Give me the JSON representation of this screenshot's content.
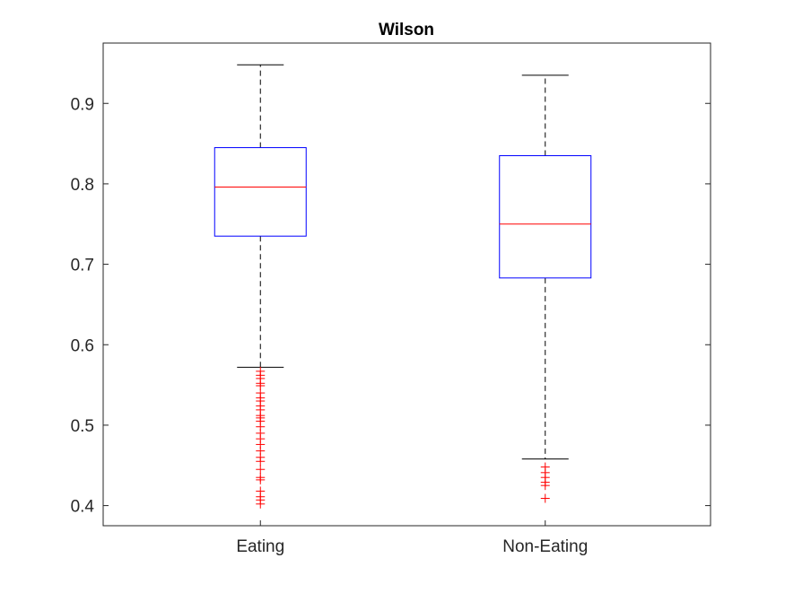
{
  "chart_data": {
    "type": "boxplot",
    "title": "Wilson",
    "xlabel": "",
    "ylabel": "",
    "ylim": [
      0.375,
      0.975
    ],
    "yticks": [
      0.4,
      0.5,
      0.6,
      0.7,
      0.8,
      0.9
    ],
    "ytick_labels": [
      "0.4",
      "0.5",
      "0.6",
      "0.7",
      "0.8",
      "0.9"
    ],
    "grid": false,
    "colors": {
      "box": "#0000ff",
      "median": "#ff0000",
      "whisker": "#000000",
      "outlier": "#ff0000",
      "axes": "#262626"
    },
    "categories": [
      "Eating",
      "Non-Eating"
    ],
    "boxes": [
      {
        "category": "Eating",
        "whisker_low": 0.572,
        "q1": 0.735,
        "median": 0.796,
        "q3": 0.845,
        "whisker_high": 0.948,
        "outliers": [
          0.402,
          0.407,
          0.411,
          0.418,
          0.432,
          0.435,
          0.445,
          0.455,
          0.46,
          0.468,
          0.476,
          0.483,
          0.49,
          0.498,
          0.505,
          0.509,
          0.512,
          0.519,
          0.524,
          0.53,
          0.534,
          0.54,
          0.549,
          0.552,
          0.558,
          0.562,
          0.567
        ]
      },
      {
        "category": "Non-Eating",
        "whisker_low": 0.458,
        "q1": 0.683,
        "median": 0.75,
        "q3": 0.835,
        "whisker_high": 0.935,
        "outliers": [
          0.409,
          0.425,
          0.429,
          0.435,
          0.441,
          0.448
        ]
      }
    ]
  }
}
